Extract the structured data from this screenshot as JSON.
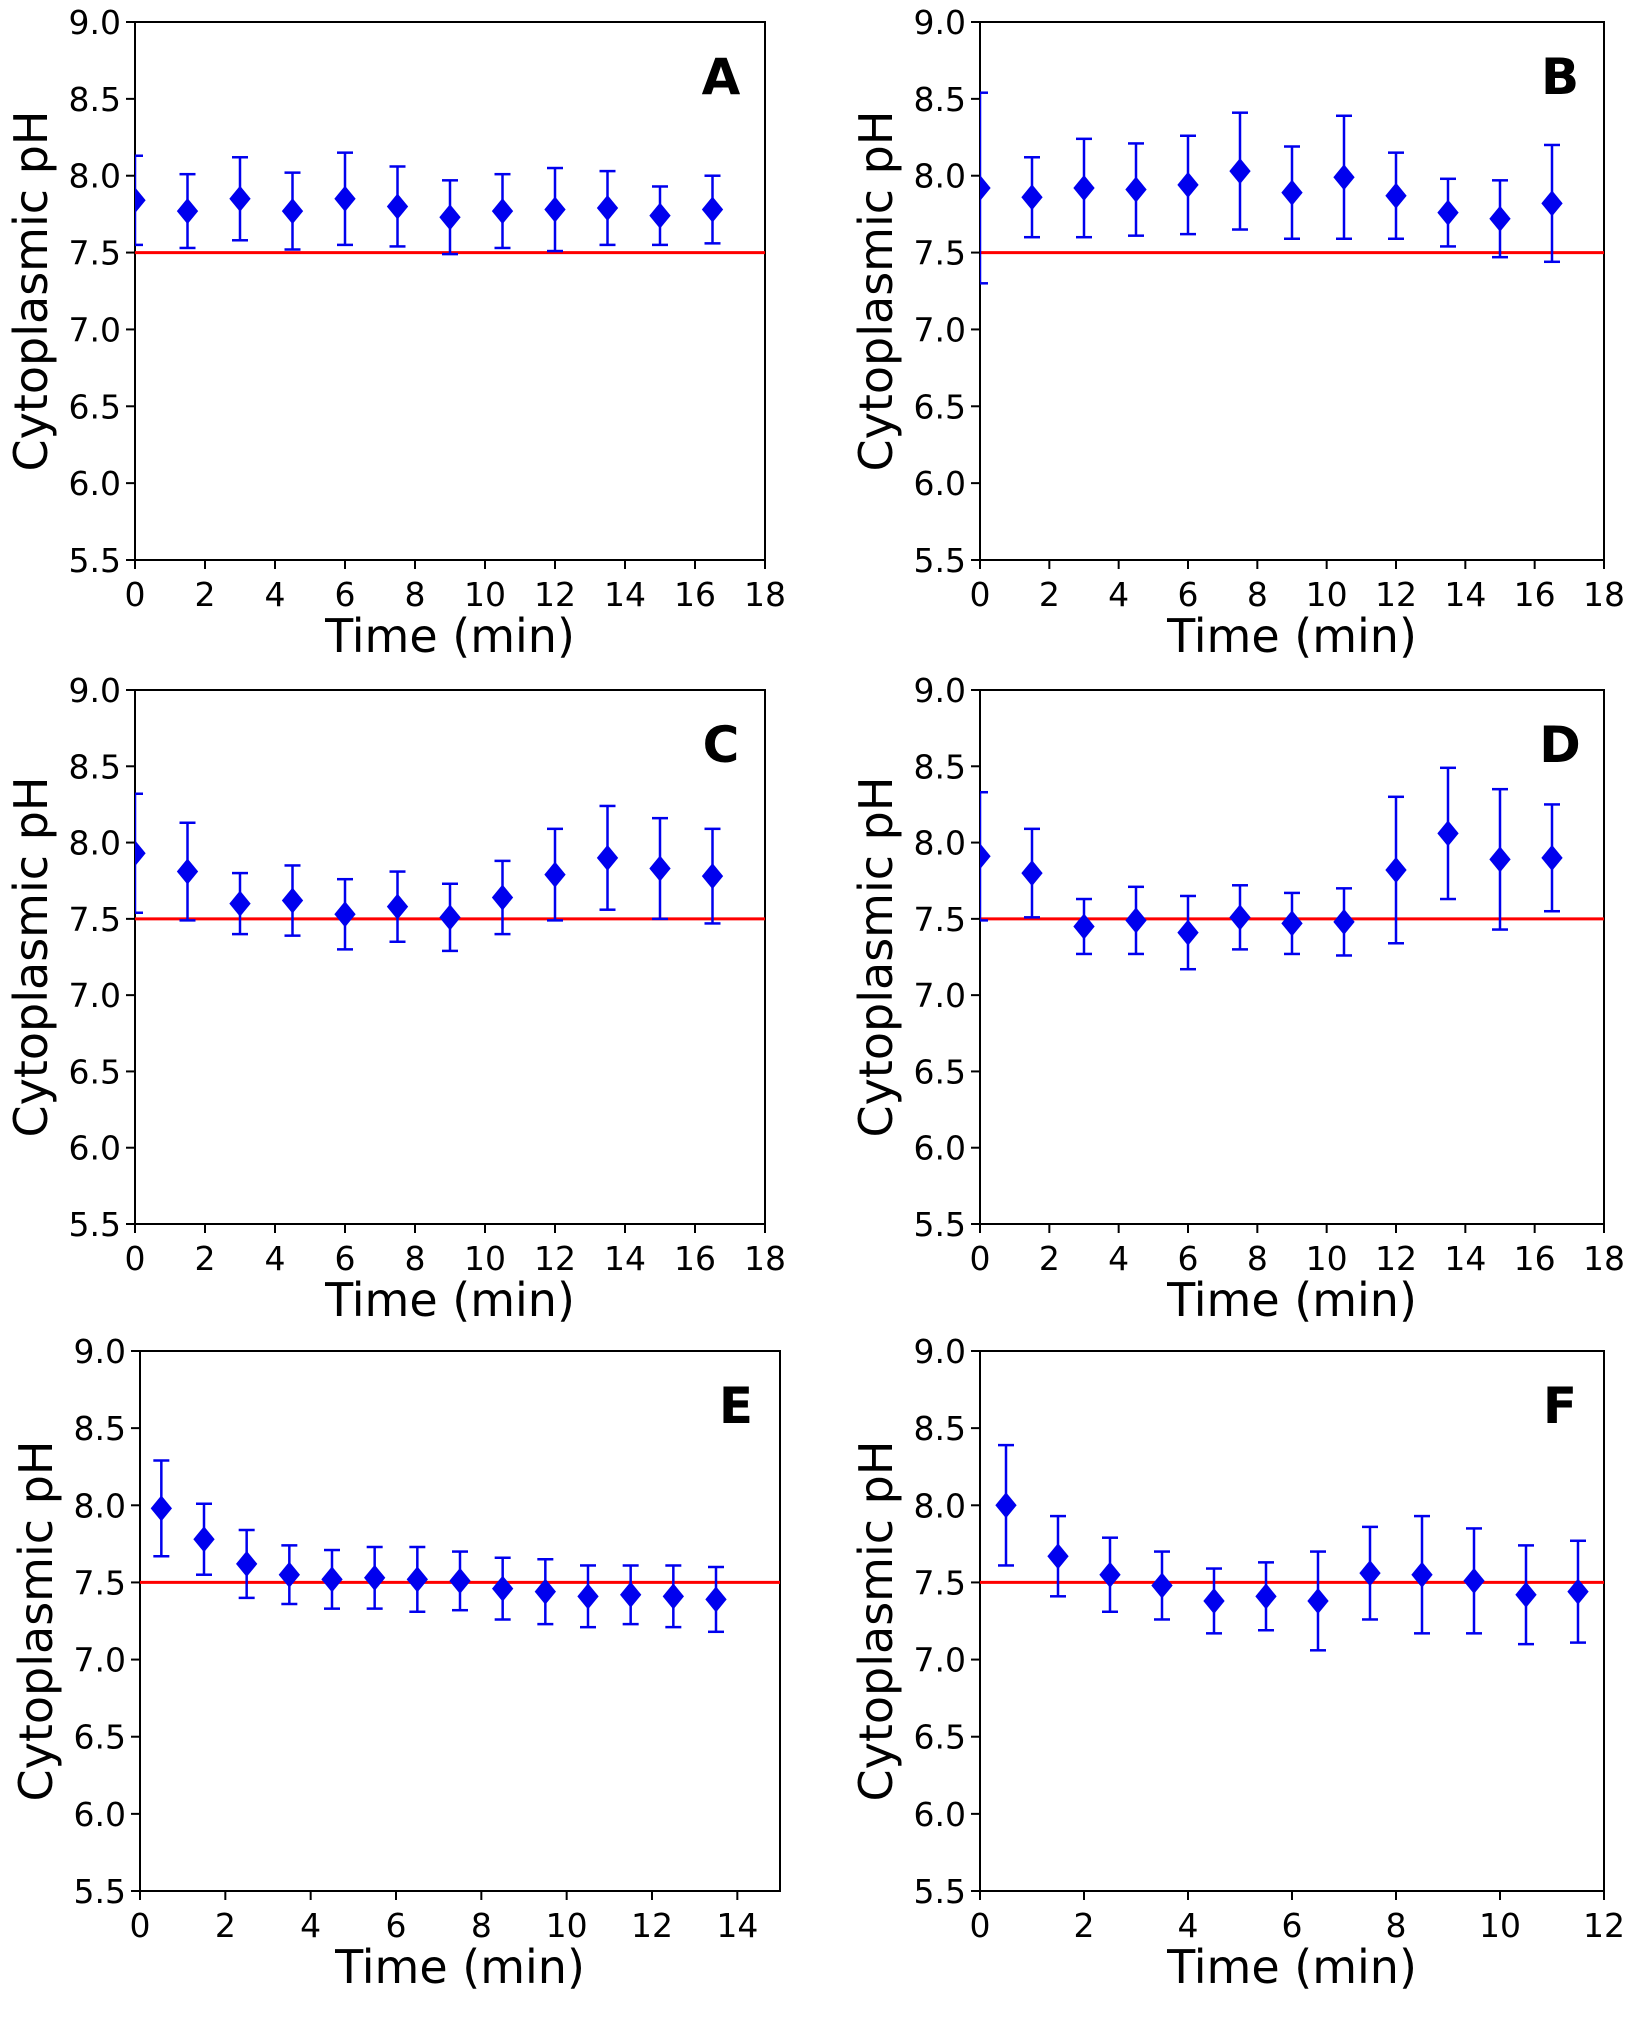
{
  "chart_data": [
    {
      "type": "scatter",
      "panel_label": "A",
      "xlabel": "Time (min)",
      "ylabel": "Cytoplasmic pH",
      "xlim": [
        0,
        18
      ],
      "ylim": [
        5.5,
        9.0
      ],
      "xticks": [
        0,
        2,
        4,
        6,
        8,
        10,
        12,
        14,
        16,
        18
      ],
      "yticks": [
        5.5,
        6.0,
        6.5,
        7.0,
        7.5,
        8.0,
        8.5,
        9.0
      ],
      "reference_line": 7.5,
      "series": [
        {
          "name": "pH",
          "x": [
            0,
            1.5,
            3,
            4.5,
            6,
            7.5,
            9,
            10.5,
            12,
            13.5,
            15,
            16.5
          ],
          "y": [
            7.84,
            7.77,
            7.85,
            7.77,
            7.85,
            7.8,
            7.73,
            7.77,
            7.78,
            7.79,
            7.74,
            7.78
          ],
          "err": [
            0.29,
            0.24,
            0.27,
            0.25,
            0.3,
            0.26,
            0.24,
            0.24,
            0.27,
            0.24,
            0.19,
            0.22
          ]
        }
      ]
    },
    {
      "type": "scatter",
      "panel_label": "B",
      "xlabel": "Time (min)",
      "ylabel": "Cytoplasmic pH",
      "xlim": [
        0,
        18
      ],
      "ylim": [
        5.5,
        9.0
      ],
      "xticks": [
        0,
        2,
        4,
        6,
        8,
        10,
        12,
        14,
        16,
        18
      ],
      "yticks": [
        5.5,
        6.0,
        6.5,
        7.0,
        7.5,
        8.0,
        8.5,
        9.0
      ],
      "reference_line": 7.5,
      "series": [
        {
          "name": "pH",
          "x": [
            0,
            1.5,
            3,
            4.5,
            6,
            7.5,
            9,
            10.5,
            12,
            13.5,
            15,
            16.5
          ],
          "y": [
            7.92,
            7.86,
            7.92,
            7.91,
            7.94,
            8.03,
            7.89,
            7.99,
            7.87,
            7.76,
            7.72,
            7.82
          ],
          "err": [
            0.62,
            0.26,
            0.32,
            0.3,
            0.32,
            0.38,
            0.3,
            0.4,
            0.28,
            0.22,
            0.25,
            0.38
          ]
        }
      ]
    },
    {
      "type": "scatter",
      "panel_label": "C",
      "xlabel": "Time (min)",
      "ylabel": "Cytoplasmic pH",
      "xlim": [
        0,
        18
      ],
      "ylim": [
        5.5,
        9.0
      ],
      "xticks": [
        0,
        2,
        4,
        6,
        8,
        10,
        12,
        14,
        16,
        18
      ],
      "yticks": [
        5.5,
        6.0,
        6.5,
        7.0,
        7.5,
        8.0,
        8.5,
        9.0
      ],
      "reference_line": 7.5,
      "series": [
        {
          "name": "pH",
          "x": [
            0,
            1.5,
            3,
            4.5,
            6,
            7.5,
            9,
            10.5,
            12,
            13.5,
            15,
            16.5
          ],
          "y": [
            7.93,
            7.81,
            7.6,
            7.62,
            7.53,
            7.58,
            7.51,
            7.64,
            7.79,
            7.9,
            7.83,
            7.78
          ],
          "err": [
            0.39,
            0.32,
            0.2,
            0.23,
            0.23,
            0.23,
            0.22,
            0.24,
            0.3,
            0.34,
            0.33,
            0.31
          ]
        }
      ]
    },
    {
      "type": "scatter",
      "panel_label": "D",
      "xlabel": "Time (min)",
      "ylabel": "Cytoplasmic pH",
      "xlim": [
        0,
        18
      ],
      "ylim": [
        5.5,
        9.0
      ],
      "xticks": [
        0,
        2,
        4,
        6,
        8,
        10,
        12,
        14,
        16,
        18
      ],
      "yticks": [
        5.5,
        6.0,
        6.5,
        7.0,
        7.5,
        8.0,
        8.5,
        9.0
      ],
      "reference_line": 7.5,
      "series": [
        {
          "name": "pH",
          "x": [
            0,
            1.5,
            3,
            4.5,
            6,
            7.5,
            9,
            10.5,
            12,
            13.5,
            15,
            16.5
          ],
          "y": [
            7.91,
            7.8,
            7.45,
            7.49,
            7.41,
            7.51,
            7.47,
            7.48,
            7.82,
            8.06,
            7.89,
            7.9
          ],
          "err": [
            0.42,
            0.29,
            0.18,
            0.22,
            0.24,
            0.21,
            0.2,
            0.22,
            0.48,
            0.43,
            0.46,
            0.35
          ]
        }
      ]
    },
    {
      "type": "scatter",
      "panel_label": "E",
      "xlabel": "Time (min)",
      "ylabel": "Cytoplasmic pH",
      "xlim": [
        0,
        15
      ],
      "ylim": [
        5.5,
        9.0
      ],
      "xticks": [
        0,
        2,
        4,
        6,
        8,
        10,
        12,
        14
      ],
      "yticks": [
        5.5,
        6.0,
        6.5,
        7.0,
        7.5,
        8.0,
        8.5,
        9.0
      ],
      "reference_line": 7.5,
      "series": [
        {
          "name": "pH",
          "x": [
            0.5,
            1.5,
            2.5,
            3.5,
            4.5,
            5.5,
            6.5,
            7.5,
            8.5,
            9.5,
            10.5,
            11.5,
            12.5,
            13.5
          ],
          "y": [
            7.98,
            7.78,
            7.62,
            7.55,
            7.52,
            7.53,
            7.52,
            7.51,
            7.46,
            7.44,
            7.41,
            7.42,
            7.41,
            7.39
          ],
          "err": [
            0.31,
            0.23,
            0.22,
            0.19,
            0.19,
            0.2,
            0.21,
            0.19,
            0.2,
            0.21,
            0.2,
            0.19,
            0.2,
            0.21
          ]
        }
      ]
    },
    {
      "type": "scatter",
      "panel_label": "F",
      "xlabel": "Time (min)",
      "ylabel": "Cytoplasmic pH",
      "xlim": [
        0,
        12
      ],
      "ylim": [
        5.5,
        9.0
      ],
      "xticks": [
        0,
        2,
        4,
        6,
        8,
        10,
        12
      ],
      "yticks": [
        5.5,
        6.0,
        6.5,
        7.0,
        7.5,
        8.0,
        8.5,
        9.0
      ],
      "reference_line": 7.5,
      "series": [
        {
          "name": "pH",
          "x": [
            0.5,
            1.5,
            2.5,
            3.5,
            4.5,
            5.5,
            6.5,
            7.5,
            8.5,
            9.5,
            10.5,
            11.5
          ],
          "y": [
            8.0,
            7.67,
            7.55,
            7.48,
            7.38,
            7.41,
            7.38,
            7.56,
            7.55,
            7.51,
            7.42,
            7.44
          ],
          "err": [
            0.39,
            0.26,
            0.24,
            0.22,
            0.21,
            0.22,
            0.32,
            0.3,
            0.38,
            0.34,
            0.32,
            0.33
          ]
        }
      ]
    }
  ],
  "colors": {
    "marker": "#0000ee",
    "reference_line": "#ff0000",
    "axis": "#000000"
  }
}
